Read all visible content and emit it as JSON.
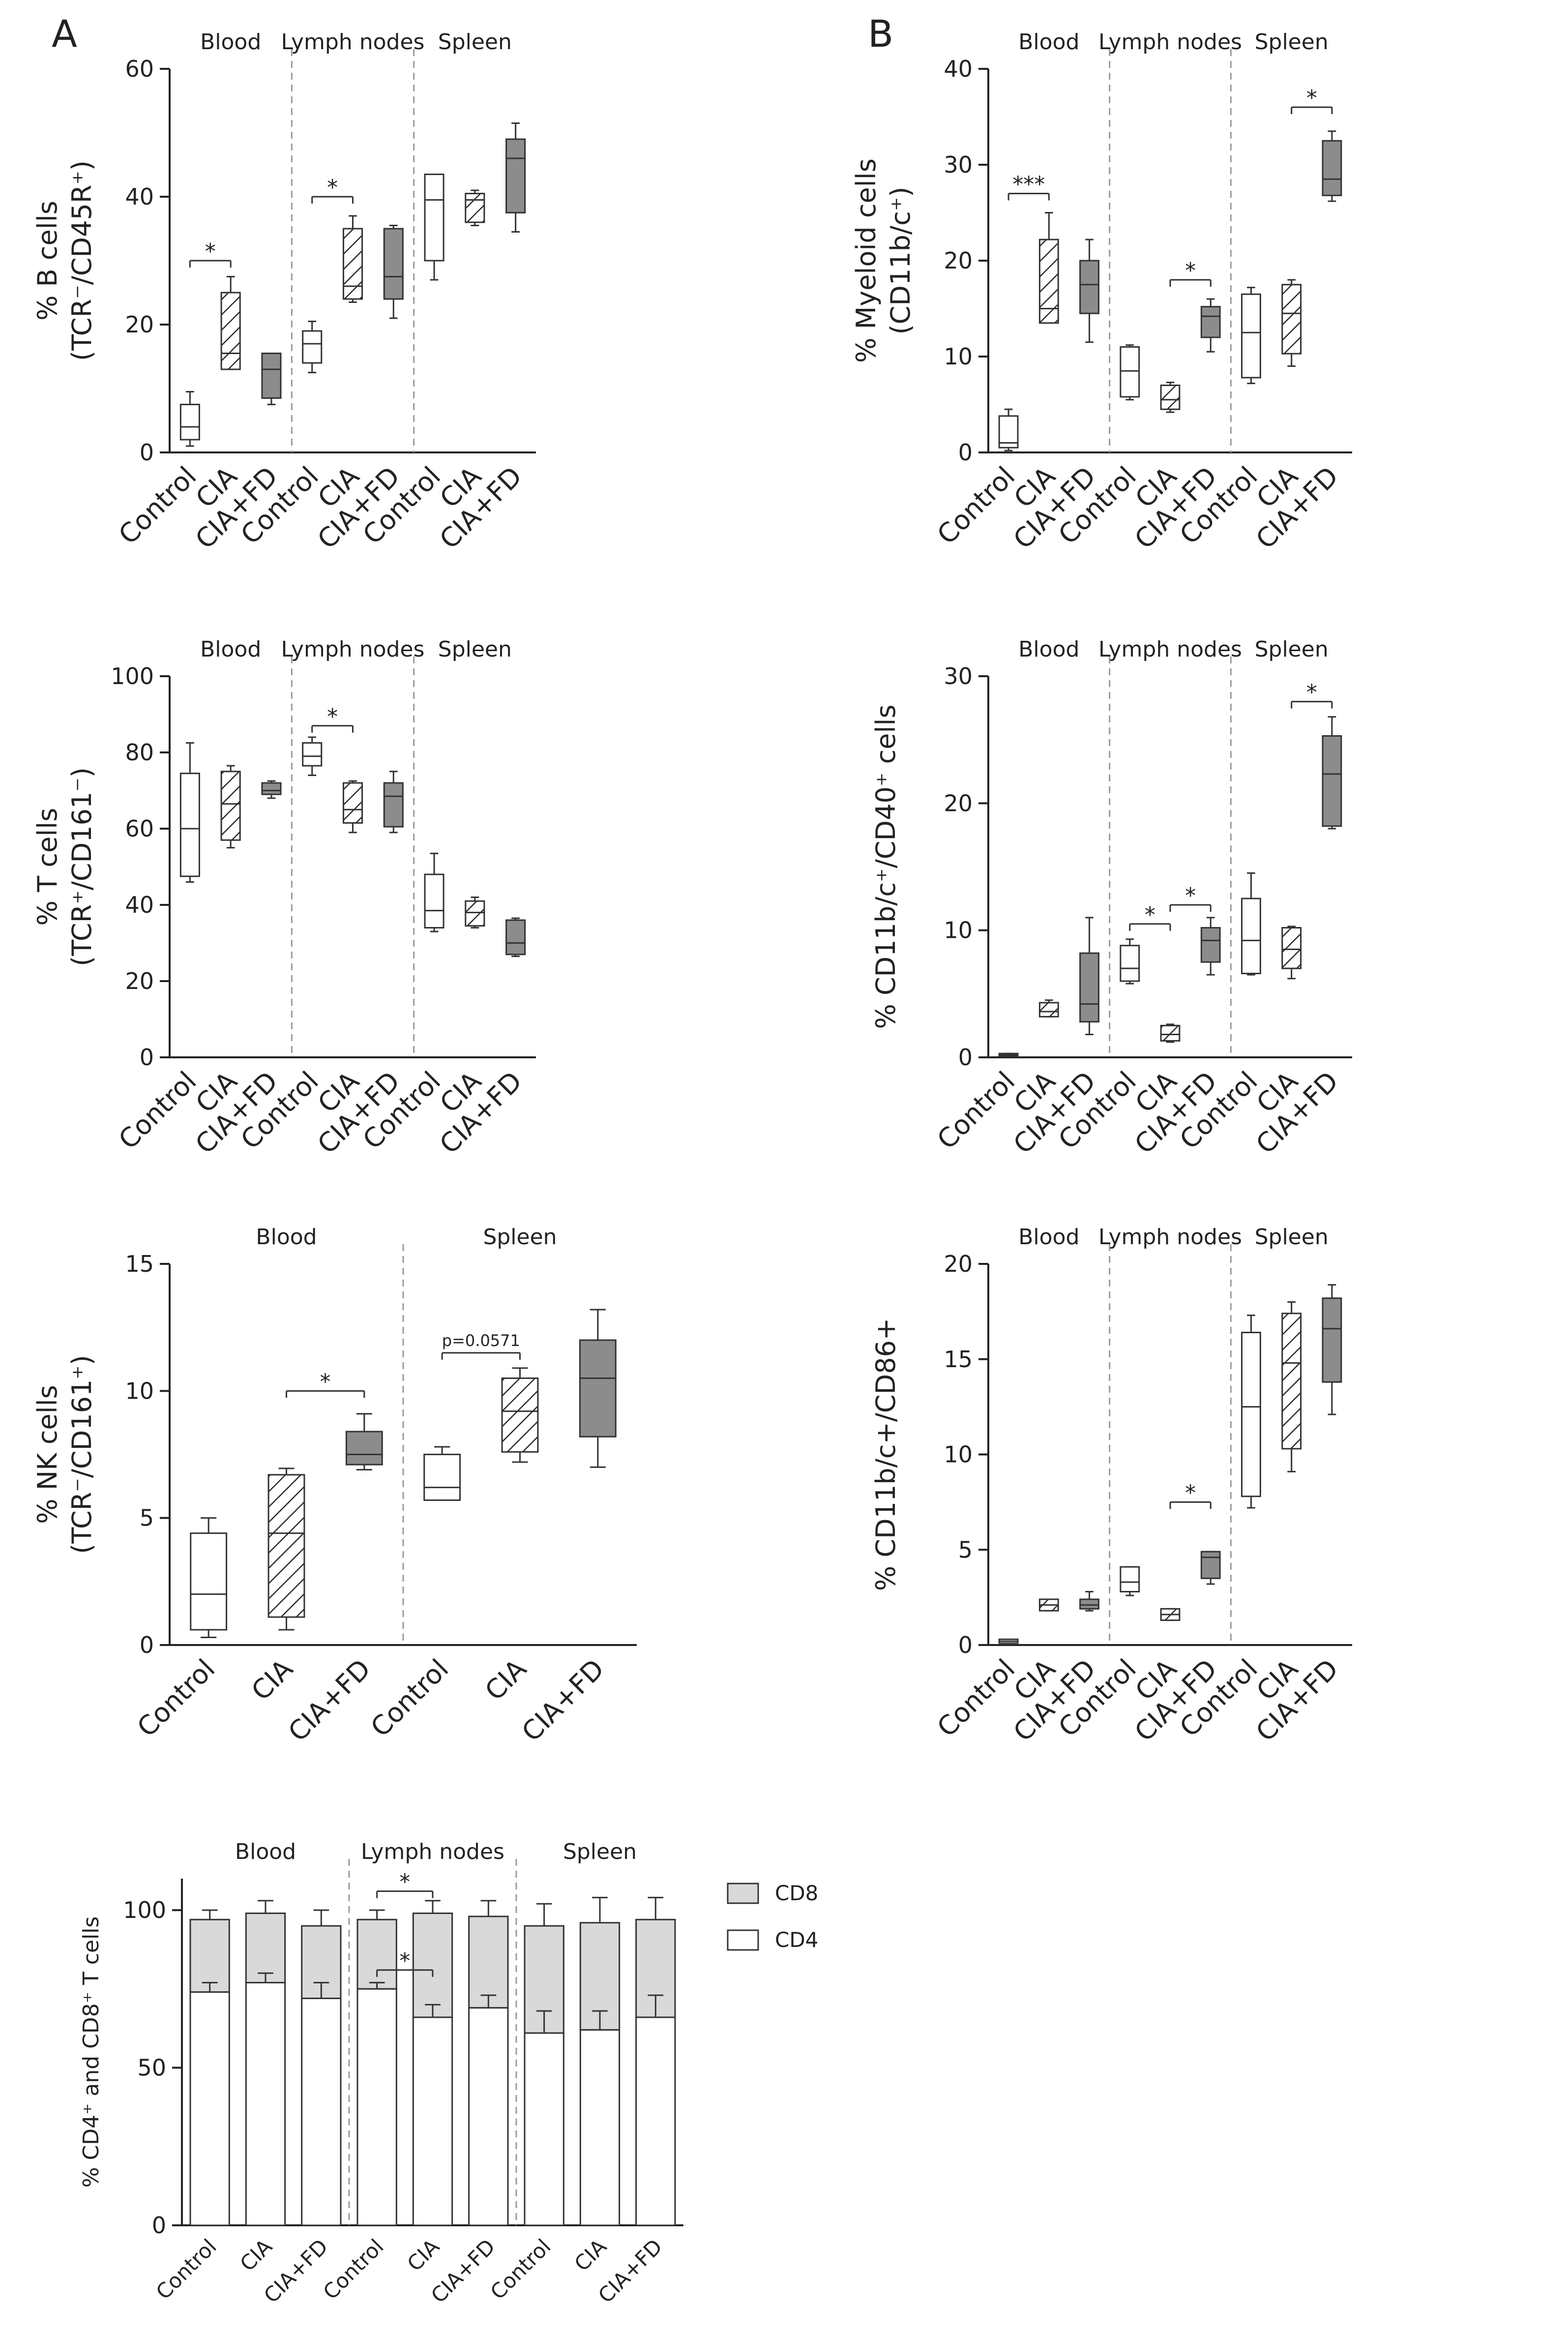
{
  "panel_labels": [
    "A",
    "B"
  ],
  "legend": {
    "cd8": "CD8",
    "cd4": "CD4"
  },
  "chart_data": [
    {
      "id": "b-cells",
      "type": "box",
      "ylabel_line1": "% B cells",
      "ylabel_line2": "(TCR⁻/CD45R⁺)",
      "ylim": [
        0,
        60
      ],
      "yticks": [
        0,
        20,
        40,
        60
      ],
      "groups": [
        "Blood",
        "Lymph nodes",
        "Spleen"
      ],
      "categories": [
        "Control",
        "CIA",
        "CIA+FD"
      ],
      "boxes": [
        {
          "group": 0,
          "cat": 0,
          "min": 1,
          "q1": 2,
          "median": 4,
          "q3": 7.5,
          "max": 9.5
        },
        {
          "group": 0,
          "cat": 1,
          "min": 13,
          "q1": 13,
          "median": 15.5,
          "q3": 25,
          "max": 27.5
        },
        {
          "group": 0,
          "cat": 2,
          "min": 7.5,
          "q1": 8.5,
          "median": 13,
          "q3": 15.5,
          "max": 15.5
        },
        {
          "group": 1,
          "cat": 0,
          "min": 12.5,
          "q1": 14,
          "median": 17,
          "q3": 19,
          "max": 20.5
        },
        {
          "group": 1,
          "cat": 1,
          "min": 23.5,
          "q1": 24,
          "median": 26,
          "q3": 35,
          "max": 37
        },
        {
          "group": 1,
          "cat": 2,
          "min": 21,
          "q1": 24,
          "median": 27.5,
          "q3": 35,
          "max": 35.5
        },
        {
          "group": 2,
          "cat": 0,
          "min": 27,
          "q1": 30,
          "median": 39.5,
          "q3": 43.5,
          "max": 43.5
        },
        {
          "group": 2,
          "cat": 1,
          "min": 35.5,
          "q1": 36,
          "median": 39.5,
          "q3": 40.5,
          "max": 41
        },
        {
          "group": 2,
          "cat": 2,
          "min": 34.5,
          "q1": 37.5,
          "median": 46,
          "q3": 49,
          "max": 51.5
        }
      ],
      "annotations": [
        {
          "text": "*",
          "from": [
            0,
            0
          ],
          "to": [
            0,
            1
          ],
          "y": 30
        },
        {
          "text": "*",
          "from": [
            1,
            0
          ],
          "to": [
            1,
            1
          ],
          "y": 40
        }
      ]
    },
    {
      "id": "myeloid-cells",
      "type": "box",
      "ylabel_line1": "% Myeloid cells",
      "ylabel_line2": "(CD11b/c⁺)",
      "ylim": [
        0,
        40
      ],
      "yticks": [
        0,
        10,
        20,
        30,
        40
      ],
      "groups": [
        "Blood",
        "Lymph nodes",
        "Spleen"
      ],
      "categories": [
        "Control",
        "CIA",
        "CIA+FD"
      ],
      "boxes": [
        {
          "group": 0,
          "cat": 0,
          "min": 0.2,
          "q1": 0.5,
          "median": 1,
          "q3": 3.8,
          "max": 4.5
        },
        {
          "group": 0,
          "cat": 1,
          "min": 13.5,
          "q1": 13.5,
          "median": 15,
          "q3": 22.2,
          "max": 25
        },
        {
          "group": 0,
          "cat": 2,
          "min": 11.5,
          "q1": 14.5,
          "median": 17.5,
          "q3": 20,
          "max": 22.2
        },
        {
          "group": 1,
          "cat": 0,
          "min": 5.5,
          "q1": 5.8,
          "median": 8.5,
          "q3": 11,
          "max": 11.2
        },
        {
          "group": 1,
          "cat": 1,
          "min": 4.2,
          "q1": 4.5,
          "median": 5.5,
          "q3": 7,
          "max": 7.3
        },
        {
          "group": 1,
          "cat": 2,
          "min": 10.5,
          "q1": 12,
          "median": 14.2,
          "q3": 15.2,
          "max": 16
        },
        {
          "group": 2,
          "cat": 0,
          "min": 7.2,
          "q1": 7.8,
          "median": 12.5,
          "q3": 16.5,
          "max": 17.2
        },
        {
          "group": 2,
          "cat": 1,
          "min": 9,
          "q1": 10.3,
          "median": 14.5,
          "q3": 17.5,
          "max": 18
        },
        {
          "group": 2,
          "cat": 2,
          "min": 26.2,
          "q1": 26.8,
          "median": 28.5,
          "q3": 32.5,
          "max": 33.5
        }
      ],
      "annotations": [
        {
          "text": "***",
          "from": [
            0,
            0
          ],
          "to": [
            0,
            1
          ],
          "y": 27
        },
        {
          "text": "*",
          "from": [
            1,
            1
          ],
          "to": [
            1,
            2
          ],
          "y": 18
        },
        {
          "text": "*",
          "from": [
            2,
            1
          ],
          "to": [
            2,
            2
          ],
          "y": 36
        }
      ]
    },
    {
      "id": "t-cells",
      "type": "box",
      "ylabel_line1": "% T cells",
      "ylabel_line2": "(TCR⁺/CD161⁻)",
      "ylim": [
        0,
        100
      ],
      "yticks": [
        0,
        20,
        40,
        60,
        80,
        100
      ],
      "groups": [
        "Blood",
        "Lymph nodes",
        "Spleen"
      ],
      "categories": [
        "Control",
        "CIA",
        "CIA+FD"
      ],
      "boxes": [
        {
          "group": 0,
          "cat": 0,
          "min": 46,
          "q1": 47.5,
          "median": 60,
          "q3": 74.5,
          "max": 82.5
        },
        {
          "group": 0,
          "cat": 1,
          "min": 55,
          "q1": 57,
          "median": 66.5,
          "q3": 75,
          "max": 76.5
        },
        {
          "group": 0,
          "cat": 2,
          "min": 68,
          "q1": 69,
          "median": 70,
          "q3": 72,
          "max": 72.5
        },
        {
          "group": 1,
          "cat": 0,
          "min": 74,
          "q1": 76.5,
          "median": 79,
          "q3": 82.5,
          "max": 84
        },
        {
          "group": 1,
          "cat": 1,
          "min": 59,
          "q1": 61.5,
          "median": 65,
          "q3": 72,
          "max": 72.5
        },
        {
          "group": 1,
          "cat": 2,
          "min": 59,
          "q1": 60.5,
          "median": 68.5,
          "q3": 72,
          "max": 75
        },
        {
          "group": 2,
          "cat": 0,
          "min": 33,
          "q1": 34,
          "median": 38.5,
          "q3": 48,
          "max": 53.5
        },
        {
          "group": 2,
          "cat": 1,
          "min": 34,
          "q1": 34.5,
          "median": 38,
          "q3": 41,
          "max": 42
        },
        {
          "group": 2,
          "cat": 2,
          "min": 26.5,
          "q1": 27,
          "median": 30,
          "q3": 36,
          "max": 36.5
        }
      ],
      "annotations": [
        {
          "text": "*",
          "from": [
            1,
            0
          ],
          "to": [
            1,
            1
          ],
          "y": 87
        }
      ]
    },
    {
      "id": "cd40-cells",
      "type": "box",
      "ylabel_line1": "% CD11b/c⁺/CD40⁺ cells",
      "ylabel_line2": "",
      "ylim": [
        0,
        30
      ],
      "yticks": [
        0,
        10,
        20,
        30
      ],
      "groups": [
        "Blood",
        "Lymph nodes",
        "Spleen"
      ],
      "categories": [
        "Control",
        "CIA",
        "CIA+FD"
      ],
      "boxes": [
        {
          "group": 0,
          "cat": 0,
          "min": 0.1,
          "q1": 0.1,
          "median": 0.2,
          "q3": 0.3,
          "max": 0.3
        },
        {
          "group": 0,
          "cat": 1,
          "min": 3.2,
          "q1": 3.2,
          "median": 3.6,
          "q3": 4.3,
          "max": 4.5
        },
        {
          "group": 0,
          "cat": 2,
          "min": 1.8,
          "q1": 2.8,
          "median": 4.2,
          "q3": 8.2,
          "max": 11
        },
        {
          "group": 1,
          "cat": 0,
          "min": 5.8,
          "q1": 6,
          "median": 7,
          "q3": 8.8,
          "max": 9.3
        },
        {
          "group": 1,
          "cat": 1,
          "min": 1.2,
          "q1": 1.3,
          "median": 1.8,
          "q3": 2.5,
          "max": 2.6
        },
        {
          "group": 1,
          "cat": 2,
          "min": 6.5,
          "q1": 7.5,
          "median": 9.2,
          "q3": 10.2,
          "max": 11
        },
        {
          "group": 2,
          "cat": 0,
          "min": 6.5,
          "q1": 6.6,
          "median": 9.2,
          "q3": 12.5,
          "max": 14.5
        },
        {
          "group": 2,
          "cat": 1,
          "min": 6.2,
          "q1": 7,
          "median": 8.5,
          "q3": 10.2,
          "max": 10.3
        },
        {
          "group": 2,
          "cat": 2,
          "min": 18,
          "q1": 18.2,
          "median": 22.3,
          "q3": 25.3,
          "max": 26.8
        }
      ],
      "annotations": [
        {
          "text": "*",
          "from": [
            1,
            0
          ],
          "to": [
            1,
            1
          ],
          "y": 10.5
        },
        {
          "text": "*",
          "from": [
            1,
            1
          ],
          "to": [
            1,
            2
          ],
          "y": 12
        },
        {
          "text": "*",
          "from": [
            2,
            1
          ],
          "to": [
            2,
            2
          ],
          "y": 28
        }
      ]
    },
    {
      "id": "nk-cells",
      "type": "box",
      "ylabel_line1": "% NK cells",
      "ylabel_line2": "(TCR⁻/CD161⁺)",
      "ylim": [
        0,
        15
      ],
      "yticks": [
        0,
        5,
        10,
        15
      ],
      "groups": [
        "Blood",
        "Spleen"
      ],
      "categories": [
        "Control",
        "CIA",
        "CIA+FD"
      ],
      "boxes": [
        {
          "group": 0,
          "cat": 0,
          "min": 0.3,
          "q1": 0.6,
          "median": 2,
          "q3": 4.4,
          "max": 5
        },
        {
          "group": 0,
          "cat": 1,
          "min": 0.6,
          "q1": 1.1,
          "median": 4.4,
          "q3": 6.7,
          "max": 6.95
        },
        {
          "group": 0,
          "cat": 2,
          "min": 6.9,
          "q1": 7.1,
          "median": 7.5,
          "q3": 8.4,
          "max": 9.1
        },
        {
          "group": 1,
          "cat": 0,
          "min": 5.7,
          "q1": 5.7,
          "median": 6.2,
          "q3": 7.5,
          "max": 7.8
        },
        {
          "group": 1,
          "cat": 1,
          "min": 7.2,
          "q1": 7.6,
          "median": 9.2,
          "q3": 10.5,
          "max": 10.9
        },
        {
          "group": 1,
          "cat": 2,
          "min": 7,
          "q1": 8.2,
          "median": 10.5,
          "q3": 12,
          "max": 13.2
        }
      ],
      "annotations": [
        {
          "text": "*",
          "from": [
            0,
            1
          ],
          "to": [
            0,
            2
          ],
          "y": 10
        },
        {
          "text": "p=0.0571",
          "from": [
            1,
            0
          ],
          "to": [
            1,
            1
          ],
          "y": 11.5
        }
      ]
    },
    {
      "id": "cd86-cells",
      "type": "box",
      "ylabel_line1": "% CD11b/c+/CD86+",
      "ylabel_line2": "",
      "ylim": [
        0,
        20
      ],
      "yticks": [
        0,
        5,
        10,
        15,
        20
      ],
      "groups": [
        "Blood",
        "Lymph nodes",
        "Spleen"
      ],
      "categories": [
        "Control",
        "CIA",
        "CIA+FD"
      ],
      "boxes": [
        {
          "group": 0,
          "cat": 0,
          "min": 0.1,
          "q1": 0.1,
          "median": 0.2,
          "q3": 0.3,
          "max": 0.3
        },
        {
          "group": 0,
          "cat": 1,
          "min": 1.8,
          "q1": 1.8,
          "median": 2.1,
          "q3": 2.4,
          "max": 2.4
        },
        {
          "group": 0,
          "cat": 2,
          "min": 1.8,
          "q1": 1.9,
          "median": 2.1,
          "q3": 2.4,
          "max": 2.8
        },
        {
          "group": 1,
          "cat": 0,
          "min": 2.6,
          "q1": 2.8,
          "median": 3.3,
          "q3": 4.1,
          "max": 4.1
        },
        {
          "group": 1,
          "cat": 1,
          "min": 1.3,
          "q1": 1.3,
          "median": 1.6,
          "q3": 1.9,
          "max": 1.9
        },
        {
          "group": 1,
          "cat": 2,
          "min": 3.2,
          "q1": 3.5,
          "median": 4.6,
          "q3": 4.9,
          "max": 4.9
        },
        {
          "group": 2,
          "cat": 0,
          "min": 7.2,
          "q1": 7.8,
          "median": 12.5,
          "q3": 16.4,
          "max": 17.3
        },
        {
          "group": 2,
          "cat": 1,
          "min": 9.1,
          "q1": 10.3,
          "median": 14.8,
          "q3": 17.4,
          "max": 18
        },
        {
          "group": 2,
          "cat": 2,
          "min": 12.1,
          "q1": 13.8,
          "median": 16.6,
          "q3": 18.2,
          "max": 18.9
        }
      ],
      "annotations": [
        {
          "text": "*",
          "from": [
            1,
            1
          ],
          "to": [
            1,
            2
          ],
          "y": 7.5
        }
      ]
    },
    {
      "id": "cd4-cd8",
      "type": "bar",
      "ylabel_line1": "% CD4⁺ and CD8⁺ T cells",
      "ylabel_line2": "",
      "ylim": [
        0,
        110
      ],
      "yticks": [
        0,
        50,
        100
      ],
      "groups": [
        "Blood",
        "Lymph nodes",
        "Spleen"
      ],
      "categories": [
        "Control",
        "CIA",
        "CIA+FD"
      ],
      "stacks": [
        {
          "group": 0,
          "cat": 0,
          "cd4": 74,
          "cd4_err": 3,
          "total": 97,
          "total_err": 3
        },
        {
          "group": 0,
          "cat": 1,
          "cd4": 77,
          "cd4_err": 3,
          "total": 99,
          "total_err": 4
        },
        {
          "group": 0,
          "cat": 2,
          "cd4": 72,
          "cd4_err": 5,
          "total": 95,
          "total_err": 5
        },
        {
          "group": 1,
          "cat": 0,
          "cd4": 75,
          "cd4_err": 2,
          "total": 97,
          "total_err": 3
        },
        {
          "group": 1,
          "cat": 1,
          "cd4": 66,
          "cd4_err": 4,
          "total": 99,
          "total_err": 4
        },
        {
          "group": 1,
          "cat": 2,
          "cd4": 69,
          "cd4_err": 4,
          "total": 98,
          "total_err": 5
        },
        {
          "group": 2,
          "cat": 0,
          "cd4": 61,
          "cd4_err": 7,
          "total": 95,
          "total_err": 7
        },
        {
          "group": 2,
          "cat": 1,
          "cd4": 62,
          "cd4_err": 6,
          "total": 96,
          "total_err": 8
        },
        {
          "group": 2,
          "cat": 2,
          "cd4": 66,
          "cd4_err": 7,
          "total": 97,
          "total_err": 7
        }
      ],
      "annotations": [
        {
          "text": "*",
          "from": [
            1,
            0
          ],
          "to": [
            1,
            1
          ],
          "y": 106
        },
        {
          "text": "*",
          "from": [
            1,
            0
          ],
          "to": [
            1,
            1
          ],
          "y": 81
        }
      ]
    }
  ]
}
